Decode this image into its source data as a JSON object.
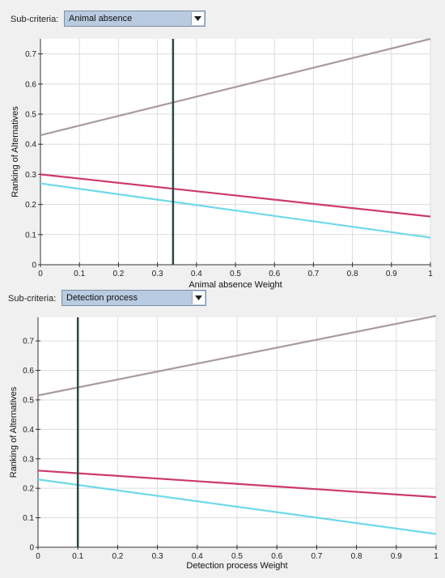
{
  "panels": [
    {
      "subcriteria_label": "Sub-criteria:",
      "selected": "Animal absence"
    },
    {
      "subcriteria_label": "Sub-criteria:",
      "selected": "Detection process"
    }
  ],
  "icons": {
    "dropdown": "chevron-down-icon"
  },
  "colors": {
    "series_top": "#aa9aa1",
    "series_mid": "#cc3a6a",
    "series_low": "#6fd9e8",
    "marker": "#2b4a44",
    "grid": "#dcdcdc",
    "plot_bg": "#ffffff"
  },
  "chart_data": [
    {
      "type": "line",
      "xlabel": "Animal absence Weight",
      "ylabel": "Ranking of Alternatives",
      "xlim": [
        0,
        1
      ],
      "ylim": [
        0,
        0.75
      ],
      "xticks": [
        "0",
        "0.1",
        "0.2",
        "0.3",
        "0.4",
        "0.5",
        "0.6",
        "0.7",
        "0.8",
        "0.9",
        "1"
      ],
      "yticks": [
        "0",
        "0.1",
        "0.2",
        "0.3",
        "0.4",
        "0.5",
        "0.6",
        "0.7"
      ],
      "grid": true,
      "marker_x": 0.34,
      "series": [
        {
          "x": [
            0,
            1
          ],
          "values": [
            0.43,
            0.75
          ]
        },
        {
          "x": [
            0,
            1
          ],
          "values": [
            0.3,
            0.16
          ]
        },
        {
          "x": [
            0,
            1
          ],
          "values": [
            0.27,
            0.09
          ]
        }
      ]
    },
    {
      "type": "line",
      "xlabel": "Detection process Weight",
      "ylabel": "Ranking of Alternatives",
      "xlim": [
        0,
        1
      ],
      "ylim": [
        0,
        0.78
      ],
      "xticks": [
        "0",
        "0.1",
        "0.2",
        "0.3",
        "0.4",
        "0.5",
        "0.6",
        "0.7",
        "0.8",
        "0.9",
        "1"
      ],
      "yticks": [
        "0",
        "0.1",
        "0.2",
        "0.3",
        "0.4",
        "0.5",
        "0.6",
        "0.7"
      ],
      "grid": true,
      "marker_x": 0.1,
      "series": [
        {
          "x": [
            0,
            1
          ],
          "values": [
            0.515,
            0.785
          ]
        },
        {
          "x": [
            0,
            1
          ],
          "values": [
            0.26,
            0.17
          ]
        },
        {
          "x": [
            0,
            1
          ],
          "values": [
            0.23,
            0.045
          ]
        }
      ]
    }
  ]
}
